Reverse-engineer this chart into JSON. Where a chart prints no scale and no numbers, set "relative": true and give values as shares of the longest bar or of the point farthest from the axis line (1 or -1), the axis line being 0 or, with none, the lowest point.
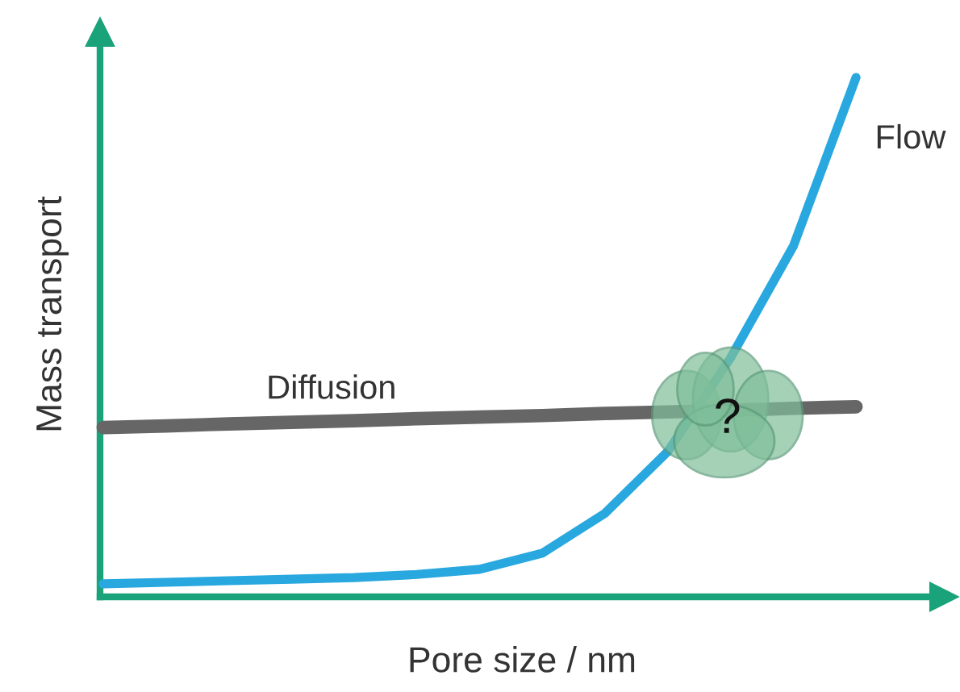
{
  "chart_data": {
    "type": "line",
    "relative": true,
    "xlabel": "Pore size / nm",
    "ylabel": "Mass transport",
    "categories": [
      null,
      null,
      null,
      null,
      null,
      null,
      null,
      null,
      null,
      null,
      null,
      null,
      null
    ],
    "series": [
      {
        "name": "Diffusion",
        "color": "#666666",
        "values": [
          0.326,
          0.329,
          0.333,
          0.336,
          0.339,
          0.343,
          0.346,
          0.349,
          0.353,
          0.356,
          0.359,
          0.363,
          0.366
        ]
      },
      {
        "name": "Flow",
        "color": "#29a8df",
        "values": [
          0.025,
          0.028,
          0.031,
          0.034,
          0.037,
          0.043,
          0.053,
          0.084,
          0.161,
          0.28,
          0.46,
          0.675,
          1.0
        ]
      }
    ],
    "annotations": [
      "?"
    ],
    "marker": "none",
    "line_style": "solid"
  }
}
